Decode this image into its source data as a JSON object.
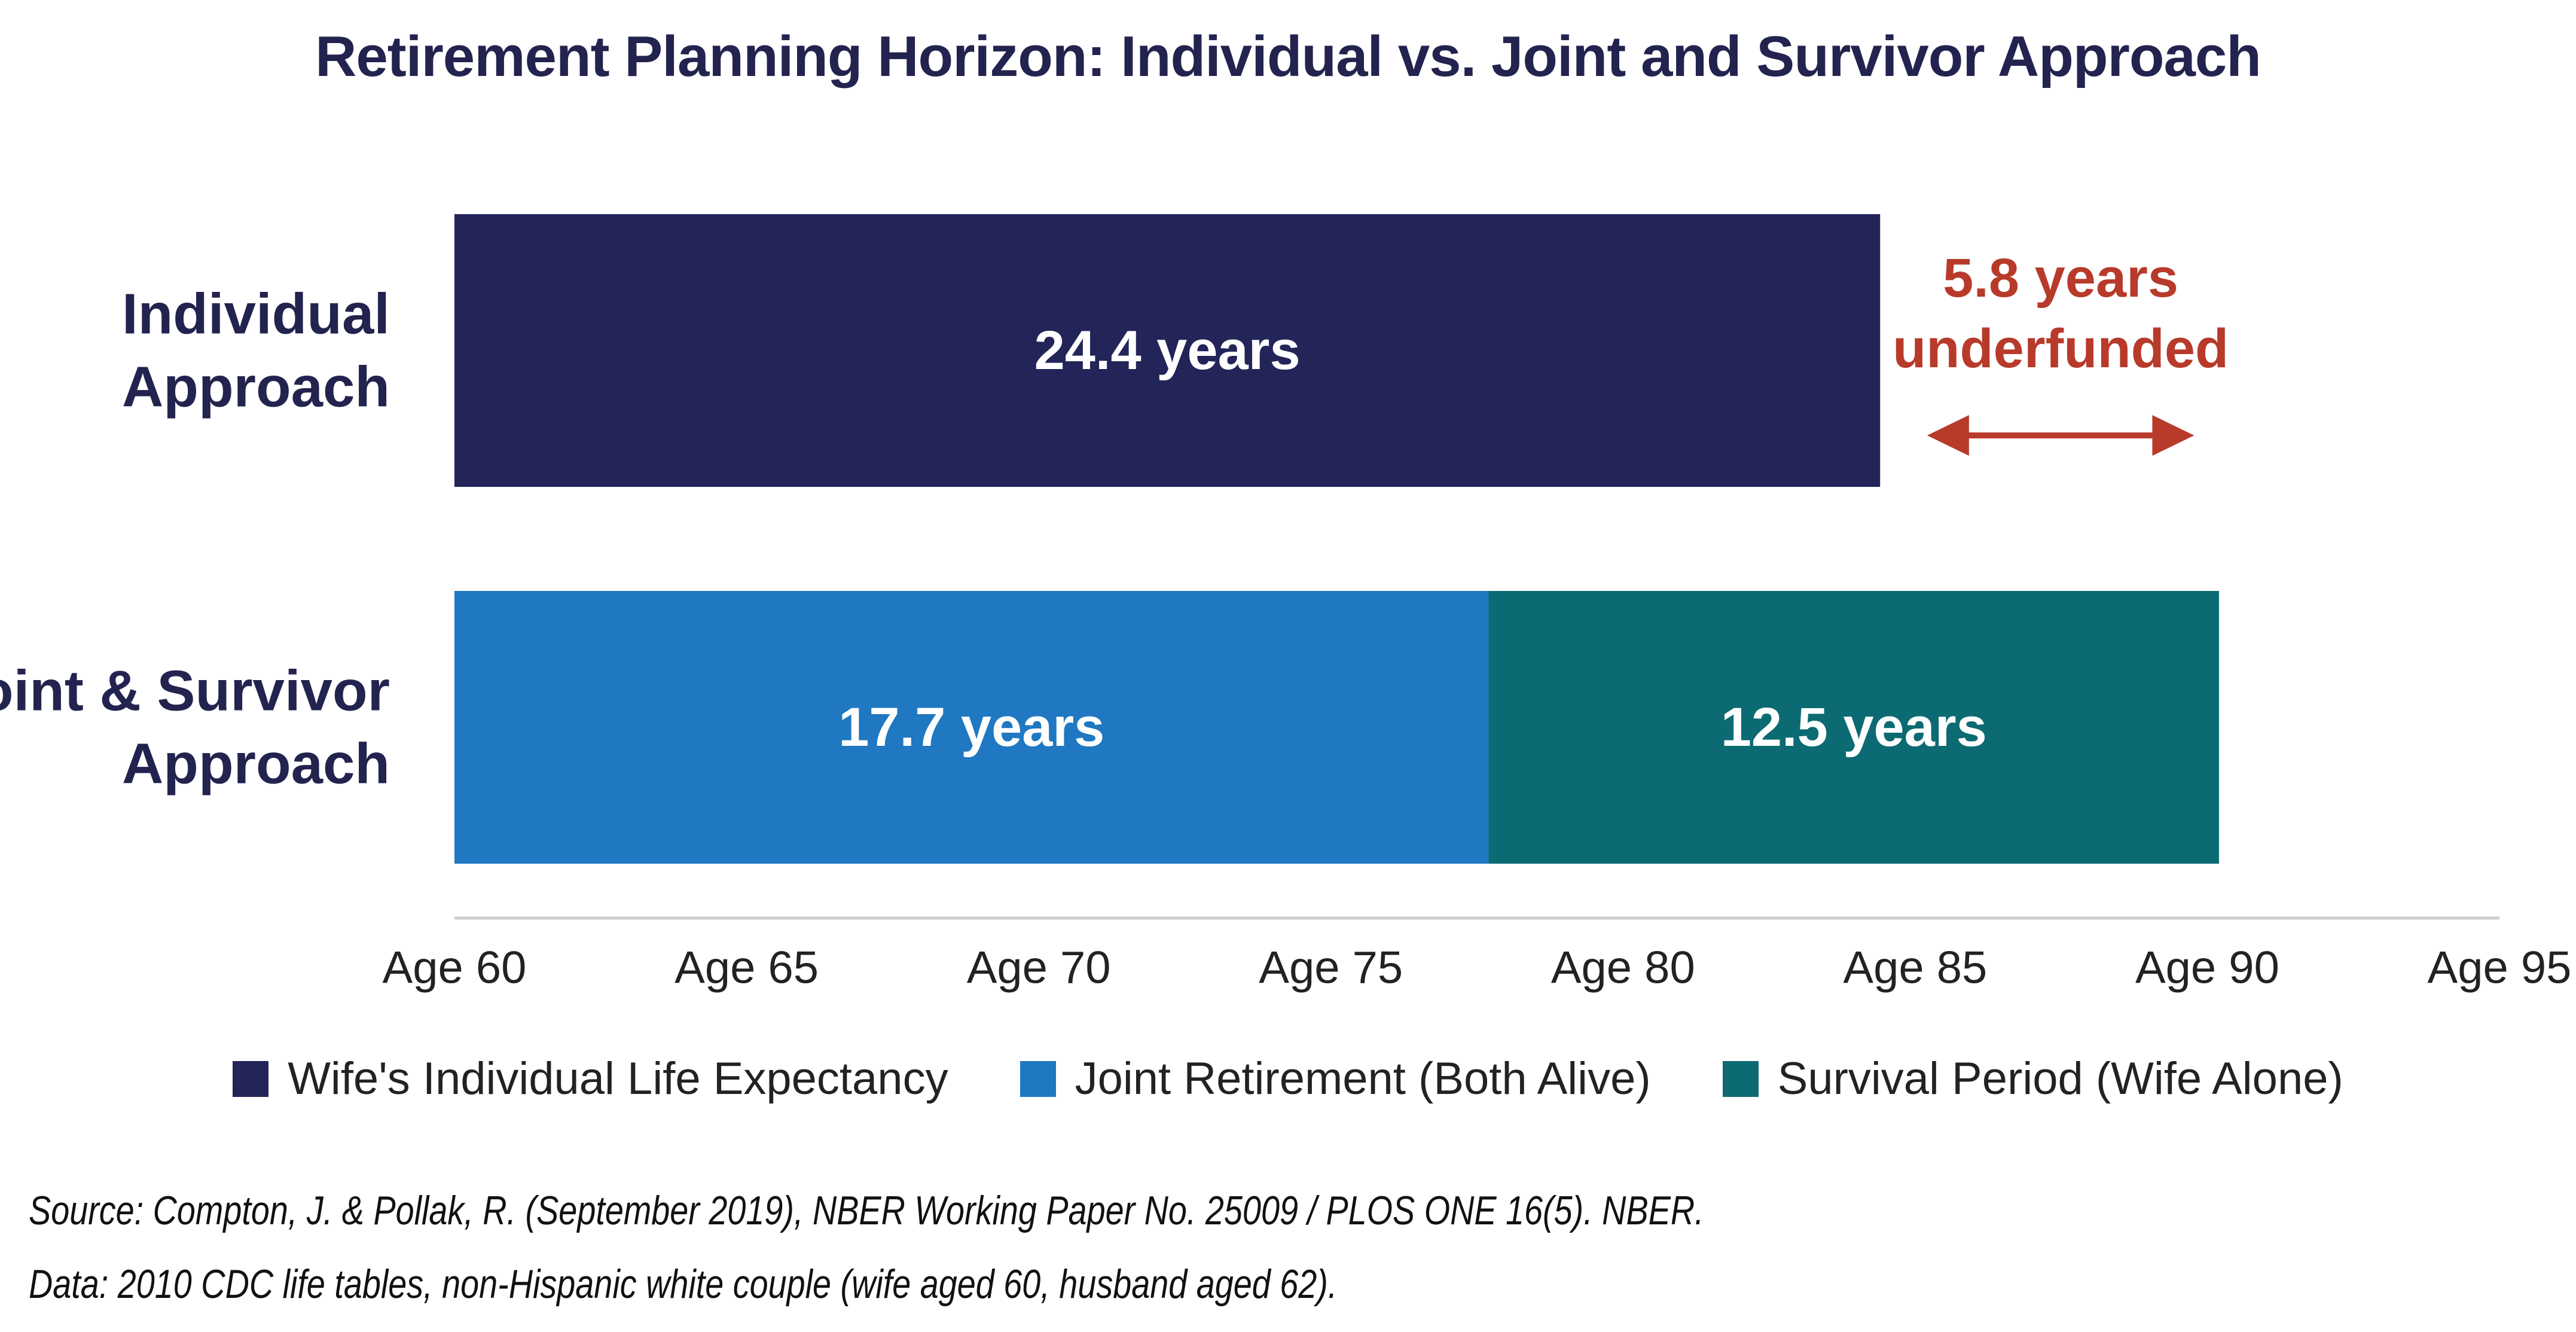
{
  "chart_data": {
    "type": "bar",
    "orientation": "horizontal",
    "stacked": true,
    "title": "Retirement Planning Horizon: Individual vs. Joint and Survivor Approach",
    "categories": [
      {
        "lines": [
          "Individual",
          "Approach"
        ]
      },
      {
        "lines": [
          "Joint & Survivor",
          "Approach"
        ]
      }
    ],
    "series": [
      {
        "name": "Wife's Individual Life Expectancy",
        "color": "#232458",
        "segments": [
          {
            "category": 0,
            "start": 60,
            "end": 84.4,
            "label": "24.4 years"
          }
        ]
      },
      {
        "name": "Joint Retirement (Both Alive)",
        "color": "#1f78c1",
        "segments": [
          {
            "category": 1,
            "start": 60,
            "end": 77.7,
            "label": "17.7 years"
          }
        ]
      },
      {
        "name": "Survival Period (Wife Alone)",
        "color": "#0c6a73",
        "segments": [
          {
            "category": 1,
            "start": 77.7,
            "end": 90.2,
            "label": "12.5 years"
          }
        ]
      }
    ],
    "xlim": [
      60,
      95
    ],
    "xticks": [
      {
        "value": 60,
        "label": "Age 60"
      },
      {
        "value": 65,
        "label": "Age 65"
      },
      {
        "value": 70,
        "label": "Age 70"
      },
      {
        "value": 75,
        "label": "Age 75"
      },
      {
        "value": 80,
        "label": "Age 80"
      },
      {
        "value": 85,
        "label": "Age 85"
      },
      {
        "value": 90,
        "label": "Age 90"
      },
      {
        "value": 95,
        "label": "Age 95"
      }
    ],
    "annotation": {
      "lines": [
        "5.8 years",
        "underfunded"
      ],
      "color": "#b83a2a",
      "from": 85,
      "to": 90
    },
    "legend_position": "bottom"
  },
  "source_lines": [
    "Source: Compton, J. & Pollak, R. (September 2019), NBER Working Paper No. 25009 / PLOS ONE 16(5). NBER.",
    "Data: 2010 CDC life tables, non-Hispanic white couple (wife aged 60, husband aged 62)."
  ]
}
